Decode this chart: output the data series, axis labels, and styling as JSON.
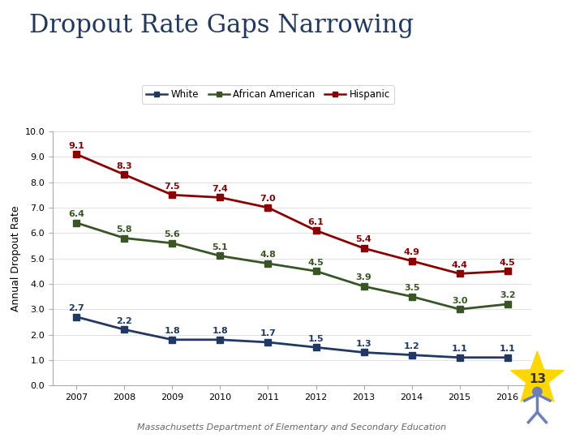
{
  "title": "Dropout Rate Gaps Narrowing",
  "ylabel": "Annual Dropout Rate",
  "years": [
    2007,
    2008,
    2009,
    2010,
    2011,
    2012,
    2013,
    2014,
    2015,
    2016
  ],
  "year_labels": [
    "2007",
    "2008",
    "2009",
    "2010",
    "2011",
    "2012",
    "2013",
    "2014",
    "2015",
    "2016"
  ],
  "white": [
    2.7,
    2.2,
    1.8,
    1.8,
    1.7,
    1.5,
    1.3,
    1.2,
    1.1,
    1.1
  ],
  "african_american": [
    6.4,
    5.8,
    5.6,
    5.1,
    4.8,
    4.5,
    3.9,
    3.5,
    3.0,
    3.2
  ],
  "hispanic": [
    9.1,
    8.3,
    7.5,
    7.4,
    7.0,
    6.1,
    5.4,
    4.9,
    4.4,
    4.5
  ],
  "white_color": "#1F3864",
  "african_american_color": "#375623",
  "hispanic_color": "#8B0000",
  "ylim": [
    0.0,
    10.0
  ],
  "yticks": [
    0.0,
    1.0,
    2.0,
    3.0,
    4.0,
    5.0,
    6.0,
    7.0,
    8.0,
    9.0,
    10.0
  ],
  "ytick_labels": [
    "0.0",
    "1.0",
    "2.0",
    "3.0",
    "4.0",
    "5.0",
    "6.0",
    "7.0",
    "8.0",
    "9.0",
    "10.0"
  ],
  "legend_white": "White",
  "legend_aa": "African American",
  "legend_hispanic": "Hispanic",
  "footer": "Massachusetts Department of Elementary and Secondary Education",
  "title_color": "#1F3864",
  "title_fontsize": 22,
  "footer_fontsize": 8,
  "label_fontsize": 8,
  "axis_label_fontsize": 9,
  "marker": "s",
  "linewidth": 2.0,
  "markersize": 6,
  "background_color": "#FFFFFF",
  "star_color": "#FFD700",
  "badge_number": "13",
  "badge_fontsize": 11
}
